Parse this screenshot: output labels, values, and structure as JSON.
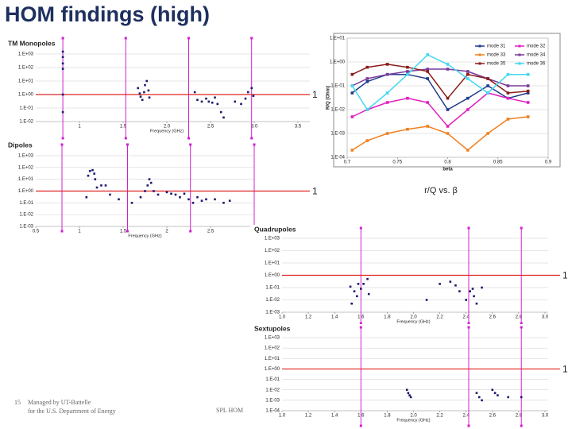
{
  "title": "HOM findings (high)",
  "footer": {
    "page": "15",
    "line1": "Managed by UT-Battelle",
    "line2": "for the U.S. Department of Energy",
    "note": "SPL HOM"
  },
  "chart_data": [
    {
      "type": "scatter",
      "title": "TM Monopoles",
      "x_label": "Frequency (GHz)",
      "log_y": true,
      "color": "#1a1a6e",
      "xlim": [
        0.5,
        3.5
      ],
      "xticks": [
        1,
        1.5,
        {
          "value": 2,
          "label": "2.0"
        },
        2.5,
        {
          "value": 3,
          "label": "3.0"
        },
        3.5
      ],
      "ylim": [
        0.01,
        1000
      ],
      "yticks": [
        {
          "value": 1000,
          "label": "1.E+03"
        },
        {
          "value": 100,
          "label": "1.E+02"
        },
        {
          "value": 10,
          "label": "1.E+01"
        },
        {
          "value": 1,
          "label": "1.E+00"
        },
        {
          "value": 0.1,
          "label": "1.E-01"
        },
        {
          "value": 0.01,
          "label": "1.E-02"
        }
      ],
      "x": [
        0.81,
        0.81,
        0.81,
        0.81,
        0.81,
        0.81,
        1.67,
        1.69,
        1.7,
        1.72,
        1.74,
        1.75,
        1.77,
        1.79,
        1.8,
        2.32,
        2.35,
        2.4,
        2.45,
        2.48,
        2.52,
        2.55,
        2.58,
        2.62,
        2.65,
        2.78,
        2.85,
        2.9,
        2.93,
        2.97,
        2.99
      ],
      "values": [
        1500,
        600,
        200,
        80,
        1,
        0.05,
        3,
        1.2,
        0.7,
        0.4,
        1.5,
        5,
        10,
        2,
        0.6,
        1.5,
        0.4,
        0.3,
        0.5,
        0.3,
        0.25,
        0.6,
        0.2,
        0.05,
        0.02,
        0.3,
        0.2,
        0.5,
        1.5,
        3,
        0.8
      ],
      "reference_line": 1,
      "reference_color": "#e02020",
      "machine_lines": [
        0.81,
        1.53,
        2.25,
        2.97
      ],
      "machine_color": "#d020d0"
    },
    {
      "type": "scatter",
      "title": "Dipoles",
      "x_label": "Frequency (GHz)",
      "log_y": true,
      "color": "#1a1a6e",
      "xlim": [
        0.5,
        3.0
      ],
      "xticks": [
        0.5,
        1,
        1.5,
        2,
        2.5
      ],
      "ylim": [
        0.001,
        1000
      ],
      "yticks": [
        {
          "value": 1000,
          "label": "1.E+03"
        },
        {
          "value": 100,
          "label": "1.E+02"
        },
        {
          "value": 10,
          "label": "1.E+01"
        },
        {
          "value": 1,
          "label": "1.E+00"
        },
        {
          "value": 0.1,
          "label": "1.E-01"
        },
        {
          "value": 0.01,
          "label": "1.E-02"
        },
        {
          "value": 0.001,
          "label": "1.E-03"
        }
      ],
      "x": [
        1.08,
        1.1,
        1.12,
        1.15,
        1.17,
        1.18,
        1.2,
        1.25,
        1.3,
        1.35,
        1.45,
        1.6,
        1.7,
        1.75,
        1.78,
        1.8,
        1.82,
        1.85,
        1.9,
        2.0,
        2.05,
        2.1,
        2.15,
        2.2,
        2.25,
        2.3,
        2.35,
        2.4,
        2.45,
        2.55,
        2.65,
        2.72
      ],
      "values": [
        0.3,
        20,
        50,
        60,
        30,
        10,
        2,
        3,
        3,
        0.5,
        0.2,
        0.1,
        0.3,
        1,
        3,
        10,
        5,
        1,
        0.5,
        0.8,
        0.6,
        0.5,
        0.3,
        0.6,
        0.2,
        0.1,
        0.3,
        0.15,
        0.2,
        0.2,
        0.1,
        0.15
      ],
      "reference_line": 1,
      "reference_color": "#e02020",
      "machine_lines": [
        0.8,
        1.55,
        2.27,
        3.0
      ],
      "machine_color": "#d020d0"
    },
    {
      "type": "line",
      "x_label": "beta",
      "y_label": "R/Q [Ohm]",
      "caption": "r/Q vs. β",
      "log_y": true,
      "xlim": [
        0.7,
        0.9
      ],
      "xticks": [
        0.7,
        0.75,
        0.8,
        0.85,
        0.9
      ],
      "ylim": [
        0.0001,
        10
      ],
      "yticks": [
        {
          "value": 10,
          "label": "1.E+01"
        },
        {
          "value": 1,
          "label": "1.E+00"
        },
        {
          "value": 0.1,
          "label": "1.E-01"
        },
        {
          "value": 0.01,
          "label": "1.E-02"
        },
        {
          "value": 0.001,
          "label": "1.E-03"
        },
        {
          "value": 0.0001,
          "label": "1.E-04"
        }
      ],
      "x": [
        0.705,
        0.72,
        0.74,
        0.76,
        0.78,
        0.8,
        0.82,
        0.84,
        0.86,
        0.88
      ],
      "series": [
        {
          "name": "mode 31",
          "color": "#1f3b8c",
          "values": [
            0.05,
            0.15,
            0.3,
            0.3,
            0.2,
            0.01,
            0.03,
            0.1,
            0.03,
            0.05
          ]
        },
        {
          "name": "mode 32",
          "color": "#e020c0",
          "values": [
            0.005,
            0.01,
            0.02,
            0.03,
            0.02,
            0.002,
            0.01,
            0.05,
            0.03,
            0.02
          ]
        },
        {
          "name": "mode 33",
          "color": "#f08020",
          "values": [
            0.0002,
            0.0005,
            0.001,
            0.0015,
            0.002,
            0.001,
            0.0002,
            0.001,
            0.004,
            0.005
          ]
        },
        {
          "name": "mode 34",
          "color": "#7a3a9a",
          "values": [
            0.1,
            0.2,
            0.3,
            0.4,
            0.5,
            0.5,
            0.4,
            0.2,
            0.1,
            0.1
          ]
        },
        {
          "name": "mode 35",
          "color": "#8b1a1a",
          "values": [
            0.3,
            0.6,
            0.8,
            0.6,
            0.4,
            0.03,
            0.3,
            0.2,
            0.05,
            0.06
          ]
        },
        {
          "name": "mode 36",
          "color": "#40d8f0",
          "values": [
            0.1,
            0.01,
            0.05,
            0.3,
            2,
            0.8,
            0.2,
            0.05,
            0.3,
            0.3
          ]
        }
      ]
    },
    {
      "type": "scatter",
      "title": "Quadrupoles",
      "x_label": "Frequency (GHz)",
      "log_y": true,
      "color": "#1a1a6e",
      "xlim": [
        1.0,
        3.0
      ],
      "xticks": [
        {
          "value": 1,
          "label": "1.0"
        },
        1.2,
        1.4,
        1.6,
        1.8,
        {
          "value": 2,
          "label": "2.0"
        },
        2.2,
        2.4,
        2.6,
        2.8,
        {
          "value": 3,
          "label": "3.0"
        }
      ],
      "ylim": [
        0.001,
        1000
      ],
      "yticks": [
        {
          "value": 1000,
          "label": "1.E+03"
        },
        {
          "value": 100,
          "label": "1.E+02"
        },
        {
          "value": 10,
          "label": "1.E+01"
        },
        {
          "value": 1,
          "label": "1.E+00"
        },
        {
          "value": 0.1,
          "label": "1.E-01"
        },
        {
          "value": 0.01,
          "label": "1.E-02"
        },
        {
          "value": 0.001,
          "label": "1.E-03"
        }
      ],
      "x": [
        1.52,
        1.53,
        1.55,
        1.57,
        1.58,
        1.6,
        1.62,
        1.65,
        1.66,
        2.1,
        2.2,
        2.28,
        2.32,
        2.35,
        2.4,
        2.43,
        2.45,
        2.46,
        2.48,
        2.52
      ],
      "values": [
        0.12,
        0.005,
        0.05,
        0.02,
        0.2,
        0.08,
        0.2,
        0.5,
        0.03,
        0.01,
        0.2,
        0.3,
        0.15,
        0.05,
        0.01,
        0.05,
        0.08,
        0.02,
        0.005,
        0.1
      ],
      "reference_line": 1,
      "reference_color": "#e02020",
      "machine_lines": [
        1.6,
        2.42,
        2.82
      ],
      "machine_color": "#d020d0"
    },
    {
      "type": "scatter",
      "title": "Sextupoles",
      "x_label": "Frequency (GHz)",
      "log_y": true,
      "color": "#1a1a6e",
      "xlim": [
        1.0,
        3.0
      ],
      "xticks": [
        {
          "value": 1,
          "label": "1.0"
        },
        1.2,
        1.4,
        1.6,
        1.8,
        {
          "value": 2,
          "label": "2.0"
        },
        2.2,
        2.4,
        2.6,
        2.8,
        {
          "value": 3,
          "label": "3.0"
        }
      ],
      "ylim": [
        0.0001,
        1000
      ],
      "yticks": [
        {
          "value": 1000,
          "label": "1.E+03"
        },
        {
          "value": 100,
          "label": "1.E+02"
        },
        {
          "value": 10,
          "label": "1.E+01"
        },
        {
          "value": 1,
          "label": "1.E+00"
        },
        {
          "value": 0.1,
          "label": "1.E-01"
        },
        {
          "value": 0.01,
          "label": "1.E-02"
        },
        {
          "value": 0.001,
          "label": "1.E-03"
        },
        {
          "value": 0.0001,
          "label": "1.E-04"
        }
      ],
      "x": [
        1.95,
        1.96,
        1.97,
        1.98,
        2.48,
        2.5,
        2.52,
        2.6,
        2.62,
        2.64,
        2.72,
        2.82
      ],
      "values": [
        0.01,
        0.005,
        0.003,
        0.002,
        0.005,
        0.002,
        0.001,
        0.01,
        0.005,
        0.003,
        0.002,
        0.002
      ],
      "reference_line": 1,
      "reference_color": "#e02020",
      "machine_lines": [
        1.6,
        2.42,
        2.82
      ],
      "machine_color": "#d020d0"
    }
  ]
}
